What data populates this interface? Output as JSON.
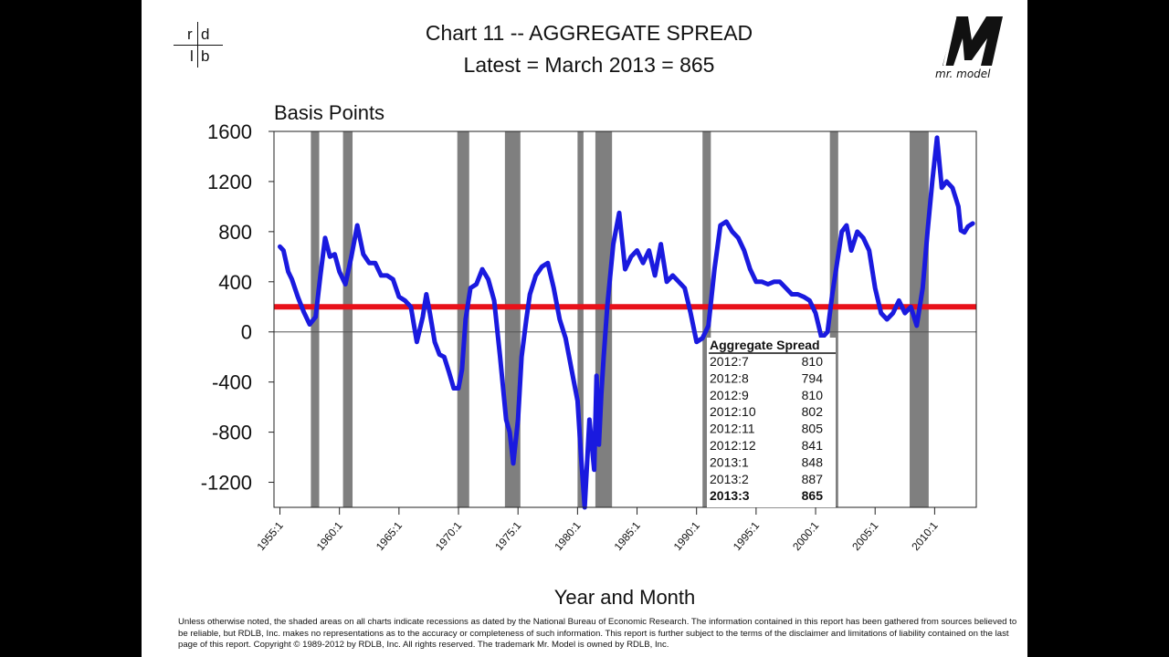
{
  "header": {
    "title": "Chart 11 -- AGGREGATE  SPREAD",
    "subtitle": "Latest = March 2013 = 865",
    "left_logo_letters": [
      "r",
      "d",
      "l",
      "b"
    ],
    "right_logo_text": "mr. model"
  },
  "chart_data": {
    "type": "line",
    "ylabel": "Basis Points",
    "xlabel": "Year and Month",
    "ylim": [
      -1400,
      1600
    ],
    "yticks": [
      "1600",
      "1200",
      "800",
      "400",
      "0",
      "-400",
      "-800",
      "-1200"
    ],
    "ytick_values": [
      1600,
      1200,
      800,
      400,
      0,
      -400,
      -800,
      -1200
    ],
    "xlim": [
      1954.5,
      2013.5
    ],
    "xticks": [
      "1955:1",
      "1960:1",
      "1965:1",
      "1970:1",
      "1975:1",
      "1980:1",
      "1985:1",
      "1990:1",
      "1995:1",
      "2000:1",
      "2005:1",
      "2010:1"
    ],
    "xtick_values": [
      1955,
      1960,
      1965,
      1970,
      1975,
      1980,
      1985,
      1990,
      1995,
      2000,
      2005,
      2010
    ],
    "reference_line": {
      "value": 200,
      "color": "#e8111a"
    },
    "zero_line": 0,
    "recession_shading": [
      [
        1957.6,
        1958.3
      ],
      [
        1960.3,
        1961.1
      ],
      [
        1969.9,
        1970.9
      ],
      [
        1973.9,
        1975.2
      ],
      [
        1980.0,
        1980.5
      ],
      [
        1981.5,
        1982.9
      ],
      [
        1990.5,
        1991.2
      ],
      [
        2001.2,
        2001.9
      ],
      [
        2007.9,
        2009.5
      ]
    ],
    "series": [
      {
        "color": "#1a1adf",
        "x": [
          1955.0,
          1955.3,
          1955.7,
          1956.0,
          1956.5,
          1957.0,
          1957.5,
          1958.0,
          1958.4,
          1958.8,
          1959.2,
          1959.6,
          1960.0,
          1960.5,
          1961.0,
          1961.5,
          1962.0,
          1962.5,
          1963.0,
          1963.5,
          1964.0,
          1964.5,
          1965.0,
          1965.5,
          1966.0,
          1966.5,
          1967.0,
          1967.3,
          1967.6,
          1968.0,
          1968.4,
          1968.8,
          1969.2,
          1969.6,
          1970.0,
          1970.3,
          1970.6,
          1971.0,
          1971.5,
          1972.0,
          1972.5,
          1973.0,
          1973.5,
          1974.0,
          1974.3,
          1974.6,
          1975.0,
          1975.3,
          1975.7,
          1976.0,
          1976.5,
          1977.0,
          1977.5,
          1978.0,
          1978.5,
          1979.0,
          1979.5,
          1980.0,
          1980.3,
          1980.6,
          1981.0,
          1981.2,
          1981.4,
          1981.6,
          1981.8,
          1982.0,
          1982.2,
          1982.5,
          1983.0,
          1983.5,
          1984.0,
          1984.5,
          1985.0,
          1985.5,
          1986.0,
          1986.5,
          1987.0,
          1987.5,
          1988.0,
          1988.5,
          1989.0,
          1989.5,
          1990.0,
          1990.5,
          1991.0,
          1991.5,
          1992.0,
          1992.5,
          1993.0,
          1993.5,
          1994.0,
          1994.5,
          1995.0,
          1995.5,
          1996.0,
          1996.5,
          1997.0,
          1997.5,
          1998.0,
          1998.5,
          1999.0,
          1999.5,
          2000.0,
          2000.5,
          2001.0,
          2001.4,
          2001.8,
          2002.2,
          2002.6,
          2003.0,
          2003.5,
          2004.0,
          2004.5,
          2005.0,
          2005.5,
          2006.0,
          2006.5,
          2007.0,
          2007.5,
          2008.0,
          2008.5,
          2009.0,
          2009.4,
          2009.8,
          2010.2,
          2010.6,
          2011.0,
          2011.5,
          2012.0,
          2012.2,
          2012.5,
          2012.8,
          2013.2
        ],
        "values": [
          680,
          650,
          480,
          420,
          280,
          160,
          60,
          120,
          450,
          750,
          600,
          620,
          480,
          380,
          600,
          850,
          620,
          550,
          550,
          450,
          450,
          420,
          280,
          250,
          200,
          -80,
          120,
          300,
          150,
          -80,
          -180,
          -200,
          -320,
          -450,
          -450,
          -300,
          100,
          350,
          380,
          500,
          420,
          250,
          -200,
          -700,
          -800,
          -1050,
          -700,
          -200,
          100,
          300,
          450,
          520,
          550,
          350,
          100,
          -50,
          -300,
          -550,
          -1000,
          -1400,
          -700,
          -900,
          -1100,
          -350,
          -900,
          -500,
          -200,
          200,
          700,
          950,
          500,
          600,
          650,
          550,
          650,
          450,
          700,
          400,
          450,
          400,
          350,
          150,
          -80,
          -50,
          50,
          500,
          850,
          880,
          800,
          750,
          650,
          500,
          400,
          400,
          380,
          400,
          400,
          350,
          300,
          300,
          280,
          250,
          150,
          -50,
          0,
          300,
          550,
          800,
          850,
          650,
          800,
          750,
          650,
          350,
          150,
          100,
          150,
          250,
          150,
          200,
          50,
          350,
          800,
          1200,
          1550,
          1150,
          1200,
          1150,
          1000,
          810,
          794,
          841,
          865
        ]
      }
    ]
  },
  "table": {
    "header": "Aggregate Spread",
    "rows": [
      {
        "period": "2012:7",
        "value": "810"
      },
      {
        "period": "2012:8",
        "value": "794"
      },
      {
        "period": "2012:9",
        "value": "810"
      },
      {
        "period": "2012:10",
        "value": "802"
      },
      {
        "period": "2012:11",
        "value": "805"
      },
      {
        "period": "2012:12",
        "value": "841"
      },
      {
        "period": "2013:1",
        "value": "848"
      },
      {
        "period": "2013:2",
        "value": "887"
      },
      {
        "period": "2013:3",
        "value": "865"
      }
    ]
  },
  "disclaimer": "Unless otherwise noted, the shaded areas on all charts indicate recessions as dated by the National Bureau of Economic Research. The information contained in this report has been gathered from sources believed to be reliable, but RDLB, Inc. makes no representations as to the accuracy or completeness of such information.  This report is further subject to the terms of the disclaimer and limitations of liability contained on the last page of this report.  Copyright © 1989-2012  by RDLB, Inc.  All rights reserved.  The trademark Mr. Model is owned by RDLB, Inc.",
  "colors": {
    "series": "#1a1adf",
    "reference": "#e8111a",
    "recession": "#7f7f7f"
  }
}
